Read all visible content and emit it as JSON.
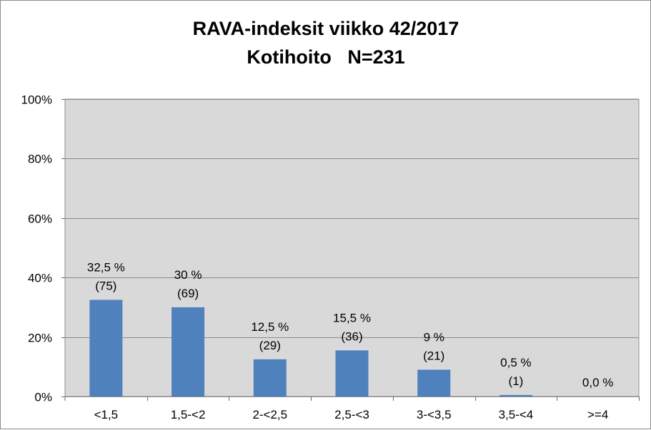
{
  "chart_data": {
    "type": "bar",
    "title": "RAVA-indeksit viikko 42/2017",
    "subtitle": "Kotihoito   N=231",
    "categories": [
      "<1,5",
      "1,5-<2",
      "2-<2,5",
      "2,5-<3",
      "3-<3,5",
      "3,5-<4",
      ">=4"
    ],
    "values": [
      32.5,
      30,
      12.5,
      15.5,
      9,
      0.5,
      0
    ],
    "value_labels": [
      "32,5 %",
      "30 %",
      "12,5 %",
      "15,5 %",
      "9 %",
      "0,5 %",
      "0,0 %"
    ],
    "count_labels": [
      "(75)",
      "(69)",
      "(29)",
      "(36)",
      "(21)",
      "(1)",
      ""
    ],
    "yticks": [
      "0%",
      "20%",
      "40%",
      "60%",
      "80%",
      "100%"
    ],
    "ylim": [
      0,
      100
    ],
    "grid": true,
    "xlabel": "",
    "ylabel": "",
    "colors": {
      "bar": "#4f81bd",
      "plot_bg": "#d9d9d9",
      "grid": "#8c8c8c"
    }
  }
}
